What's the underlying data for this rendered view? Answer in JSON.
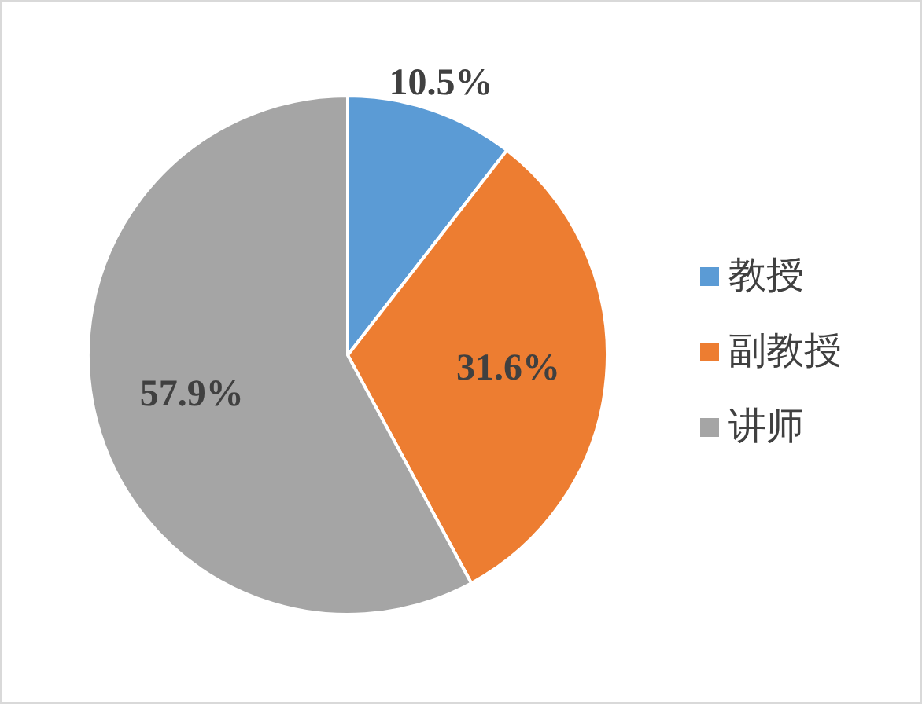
{
  "chart_data": {
    "type": "pie",
    "categories": [
      "教授",
      "副教授",
      "讲师"
    ],
    "values": [
      10.5,
      31.6,
      57.9
    ],
    "colors": [
      "#5b9bd5",
      "#ed7d31",
      "#a5a5a5"
    ],
    "value_labels": [
      "10.5%",
      "31.6%",
      "57.9%"
    ],
    "legend": "right"
  }
}
